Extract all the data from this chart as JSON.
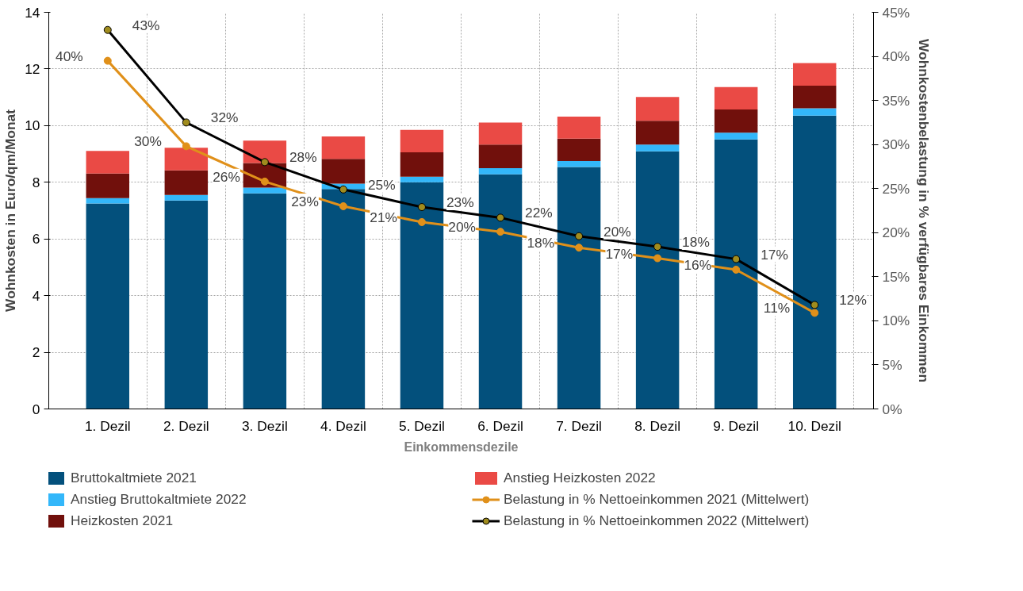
{
  "chart_data": {
    "type": "bar",
    "stacked": true,
    "xlabel": "Einkommensdezile",
    "ylabel": "Wohnkosten in Euro/qm/Monat",
    "y2label": "Wohnkostenbelastung in % verfügbares Einkommen",
    "categories": [
      "1. Dezil",
      "2. Dezil",
      "3. Dezil",
      "4. Dezil",
      "5. Dezil",
      "6. Dezil",
      "7. Dezil",
      "8. Dezil",
      "9. Dezil",
      "10. Dezil"
    ],
    "ylim": [
      0,
      14
    ],
    "yticks": [
      0,
      2,
      4,
      6,
      8,
      10,
      12,
      14
    ],
    "y2lim": [
      0,
      45
    ],
    "y2ticks": [
      {
        "value": 0,
        "label": "0%"
      },
      {
        "value": 5,
        "label": "5%"
      },
      {
        "value": 10,
        "label": "10%"
      },
      {
        "value": 15,
        "label": "15%"
      },
      {
        "value": 20,
        "label": "20%"
      },
      {
        "value": 25,
        "label": "25%"
      },
      {
        "value": 30,
        "label": "30%"
      },
      {
        "value": 35,
        "label": "35%"
      },
      {
        "value": 40,
        "label": "40%"
      },
      {
        "value": 45,
        "label": "45%"
      }
    ],
    "grid": true,
    "legend": "bottom",
    "marker": "circle",
    "series": [
      {
        "name": "Bruttokaltmiete 2021",
        "color": "#03507c",
        "values": [
          7.25,
          7.36,
          7.61,
          7.76,
          8.0,
          8.28,
          8.54,
          9.09,
          9.51,
          10.35
        ]
      },
      {
        "name": "Anstieg Bruttokaltmiete 2022",
        "color": "#33b7fa",
        "values": [
          0.19,
          0.19,
          0.2,
          0.19,
          0.2,
          0.22,
          0.21,
          0.24,
          0.24,
          0.26
        ]
      },
      {
        "name": "Heizkosten 2021",
        "color": "#71100c",
        "values": [
          0.87,
          0.87,
          0.87,
          0.88,
          0.86,
          0.83,
          0.79,
          0.84,
          0.82,
          0.8
        ]
      },
      {
        "name": "Anstieg Heizkosten 2022",
        "color": "#ea4a45",
        "values": [
          0.8,
          0.8,
          0.79,
          0.79,
          0.79,
          0.78,
          0.78,
          0.84,
          0.79,
          0.8
        ]
      },
      {
        "name": "Belastung in % Nettoeinkommen 2021 (Mittelwert)",
        "type": "line",
        "axis": "y2",
        "color": "#e0901a",
        "values": [
          39.5,
          29.8,
          25.8,
          23.0,
          21.2,
          20.1,
          18.3,
          17.1,
          15.8,
          10.9
        ],
        "value_labels": [
          "40%",
          "30%",
          "26%",
          "23%",
          "21%",
          "20%",
          "18%",
          "17%",
          "16%",
          "11%"
        ]
      },
      {
        "name": "Belastung in % Nettoeinkommen 2022 (Mittelwert)",
        "type": "line",
        "axis": "y2",
        "color": "#000000",
        "values": [
          43.0,
          32.5,
          28.0,
          24.9,
          22.9,
          21.7,
          19.6,
          18.4,
          17.0,
          11.8
        ],
        "value_labels": [
          "43%",
          "32%",
          "28%",
          "25%",
          "23%",
          "22%",
          "20%",
          "18%",
          "17%",
          "12%"
        ]
      }
    ]
  }
}
